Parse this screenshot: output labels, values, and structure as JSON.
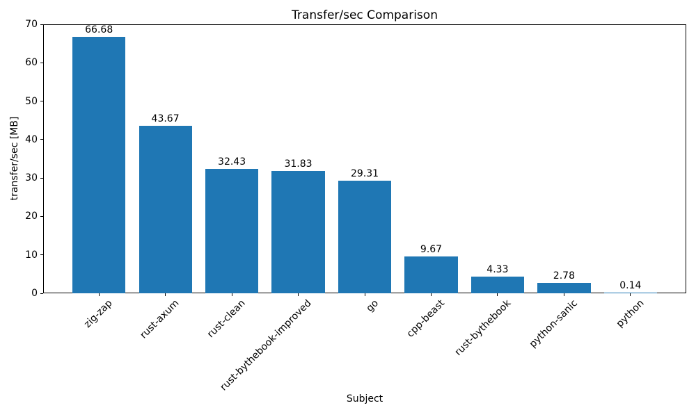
{
  "chart_data": {
    "type": "bar",
    "title": "Transfer/sec Comparison",
    "xlabel": "Subject",
    "ylabel": "transfer/sec [MB]",
    "categories": [
      "zig-zap",
      "rust-axum",
      "rust-clean",
      "rust-bythebook-improved",
      "go",
      "cpp-beast",
      "rust-bythebook",
      "python-sanic",
      "python"
    ],
    "values": [
      66.68,
      43.67,
      32.43,
      31.83,
      29.31,
      9.67,
      4.33,
      2.78,
      0.14
    ],
    "value_labels": [
      "66.68",
      "43.67",
      "32.43",
      "31.83",
      "29.31",
      "9.67",
      "4.33",
      "2.78",
      "0.14"
    ],
    "ylim": [
      0,
      70
    ],
    "yticks": [
      0,
      10,
      20,
      30,
      40,
      50,
      60,
      70
    ],
    "bar_color": "#1f77b4",
    "grid": false,
    "legend": null,
    "x_tick_rotation_deg": 45
  }
}
